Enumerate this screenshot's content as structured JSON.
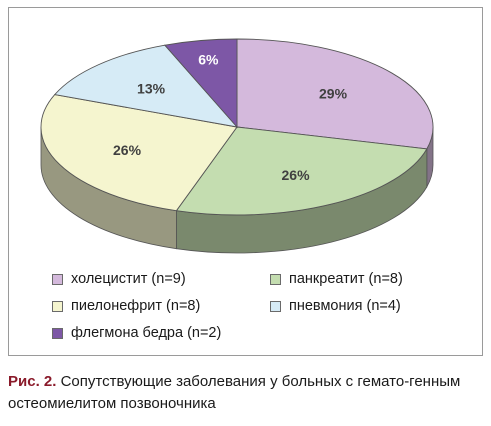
{
  "chart_data": {
    "type": "pie",
    "slices": [
      {
        "label": "холецистит (n=9)",
        "percent_label": "29%",
        "value": 29,
        "color": "#d4b9dc"
      },
      {
        "label": "панкреатит (n=8)",
        "percent_label": "26%",
        "value": 26,
        "color": "#c4ddb0"
      },
      {
        "label": "пиелонефрит (n=8)",
        "percent_label": "26%",
        "value": 26,
        "color": "#f5f5cf"
      },
      {
        "label": "пневмония (n=4)",
        "percent_label": "13%",
        "value": 13,
        "color": "#d6ebf6"
      },
      {
        "label": "флегмона бедра (n=2)",
        "percent_label": "6%",
        "value": 6,
        "color": "#7d57a6"
      }
    ],
    "legend_position": "bottom"
  },
  "caption": {
    "prefix": "Рис. 2.",
    "text": "Сопутствующие заболевания у больных с гемато-генным остеомиелитом позвоночника"
  }
}
